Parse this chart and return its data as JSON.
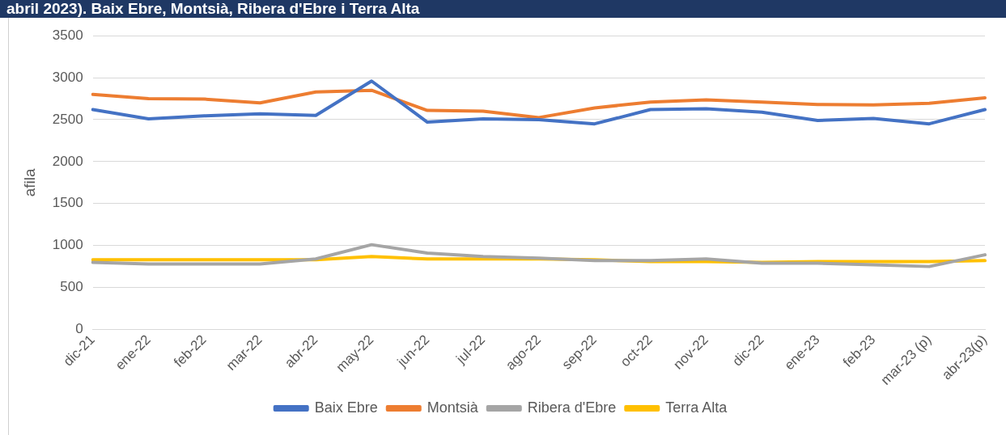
{
  "chart_data": {
    "type": "line",
    "title": "abril 2023). Baix Ebre, Montsià, Ribera d'Ebre i Terra Alta",
    "ylabel": "afila",
    "categories": [
      "dic-21",
      "ene-22",
      "feb-22",
      "mar-22",
      "abr-22",
      "may-22",
      "jun-22",
      "jul-22",
      "ago-22",
      "sep-22",
      "oct-22",
      "nov-22",
      "dic-22",
      "ene-23",
      "feb-23",
      "mar-23 (p)",
      "abr-23(p)"
    ],
    "series": [
      {
        "name": "Baix Ebre",
        "color": "#4472c4",
        "values": [
          2620,
          2510,
          2545,
          2570,
          2550,
          2960,
          2470,
          2510,
          2500,
          2450,
          2620,
          2630,
          2590,
          2490,
          2515,
          2450,
          2620
        ]
      },
      {
        "name": "Montsià",
        "color": "#ed7d31",
        "values": [
          2800,
          2750,
          2745,
          2700,
          2830,
          2850,
          2610,
          2600,
          2525,
          2640,
          2710,
          2735,
          2710,
          2680,
          2675,
          2695,
          2760
        ]
      },
      {
        "name": "Ribera d'Ebre",
        "color": "#a5a5a5",
        "values": [
          800,
          780,
          780,
          780,
          840,
          1010,
          910,
          870,
          850,
          820,
          820,
          840,
          790,
          790,
          770,
          750,
          890
        ]
      },
      {
        "name": "Terra Alta",
        "color": "#ffc000",
        "values": [
          830,
          830,
          830,
          830,
          830,
          870,
          840,
          840,
          840,
          830,
          810,
          810,
          800,
          810,
          810,
          810,
          820
        ]
      }
    ],
    "ylim": [
      0,
      3500
    ],
    "yticks": [
      0,
      500,
      1000,
      1500,
      2000,
      2500,
      3000,
      3500
    ],
    "grid": "y",
    "legend": "bottom",
    "marker": "none",
    "line_style": "solid"
  }
}
